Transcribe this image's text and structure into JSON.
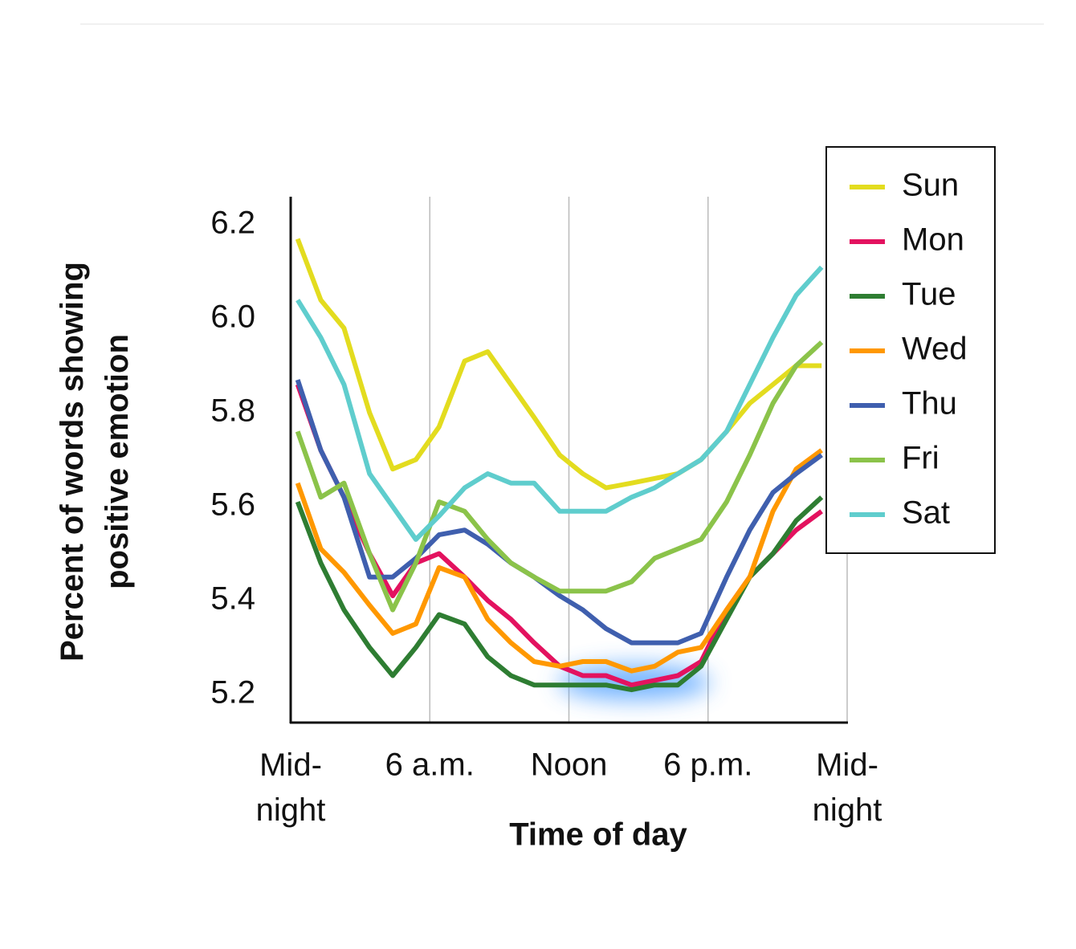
{
  "chart_data": {
    "type": "line",
    "xlabel": "Time of day",
    "ylabel": "Percent of words showing\npositive emotion",
    "x": [
      0.3,
      1.3,
      2.3,
      3.4,
      4.4,
      5.4,
      6.4,
      7.5,
      8.5,
      9.5,
      10.5,
      11.6,
      12.6,
      13.6,
      14.7,
      15.7,
      16.7,
      17.7,
      18.8,
      19.8,
      20.8,
      21.8,
      22.9
    ],
    "series": [
      {
        "name": "Sun",
        "color": "#e3dc1f",
        "values": [
          6.17,
          6.04,
          5.98,
          5.8,
          5.68,
          5.7,
          5.77,
          5.91,
          5.93,
          5.86,
          5.79,
          5.71,
          5.67,
          5.64,
          5.65,
          5.66,
          5.67,
          5.7,
          5.76,
          5.82,
          5.86,
          5.9,
          5.9
        ]
      },
      {
        "name": "Mon",
        "color": "#e3125f",
        "values": [
          5.86,
          5.72,
          5.62,
          5.5,
          5.41,
          5.48,
          5.5,
          5.45,
          5.4,
          5.36,
          5.31,
          5.26,
          5.24,
          5.24,
          5.22,
          5.23,
          5.24,
          5.27,
          5.38,
          5.45,
          5.5,
          5.55,
          5.59
        ]
      },
      {
        "name": "Tue",
        "color": "#2e7d32",
        "values": [
          5.61,
          5.48,
          5.38,
          5.3,
          5.24,
          5.3,
          5.37,
          5.35,
          5.28,
          5.24,
          5.22,
          5.22,
          5.22,
          5.22,
          5.21,
          5.22,
          5.22,
          5.26,
          5.36,
          5.45,
          5.5,
          5.57,
          5.62
        ]
      },
      {
        "name": "Wed",
        "color": "#ff9800",
        "values": [
          5.65,
          5.51,
          5.46,
          5.39,
          5.33,
          5.35,
          5.47,
          5.45,
          5.36,
          5.31,
          5.27,
          5.26,
          5.27,
          5.27,
          5.25,
          5.26,
          5.29,
          5.3,
          5.38,
          5.45,
          5.59,
          5.68,
          5.72
        ]
      },
      {
        "name": "Thu",
        "color": "#3f5fae",
        "values": [
          5.87,
          5.72,
          5.62,
          5.45,
          5.45,
          5.49,
          5.54,
          5.55,
          5.52,
          5.48,
          5.45,
          5.41,
          5.38,
          5.34,
          5.31,
          5.31,
          5.31,
          5.33,
          5.45,
          5.55,
          5.63,
          5.67,
          5.71
        ]
      },
      {
        "name": "Fri",
        "color": "#8bc34a",
        "values": [
          5.76,
          5.62,
          5.65,
          5.5,
          5.38,
          5.48,
          5.61,
          5.59,
          5.53,
          5.48,
          5.45,
          5.42,
          5.42,
          5.42,
          5.44,
          5.49,
          5.51,
          5.53,
          5.61,
          5.71,
          5.82,
          5.9,
          5.95
        ]
      },
      {
        "name": "Sat",
        "color": "#5fcdcd",
        "values": [
          6.04,
          5.96,
          5.86,
          5.67,
          5.6,
          5.53,
          5.58,
          5.64,
          5.67,
          5.65,
          5.65,
          5.59,
          5.59,
          5.59,
          5.62,
          5.64,
          5.67,
          5.7,
          5.76,
          5.86,
          5.96,
          6.05,
          6.11
        ]
      }
    ],
    "xlim": [
      0,
      24
    ],
    "xticks": [
      {
        "value": 0,
        "label": "Mid-\nnight"
      },
      {
        "value": 6,
        "label": "6 a.m."
      },
      {
        "value": 12,
        "label": "Noon"
      },
      {
        "value": 18,
        "label": "6 p.m."
      },
      {
        "value": 24,
        "label": "Mid-\nnight"
      }
    ],
    "ylim": [
      5.14,
      6.26
    ],
    "yticks": [
      5.2,
      5.4,
      5.6,
      5.8,
      {
        "value": 6,
        "label": "6.0"
      },
      6.2
    ],
    "grid": "x",
    "legend": "upper right"
  }
}
